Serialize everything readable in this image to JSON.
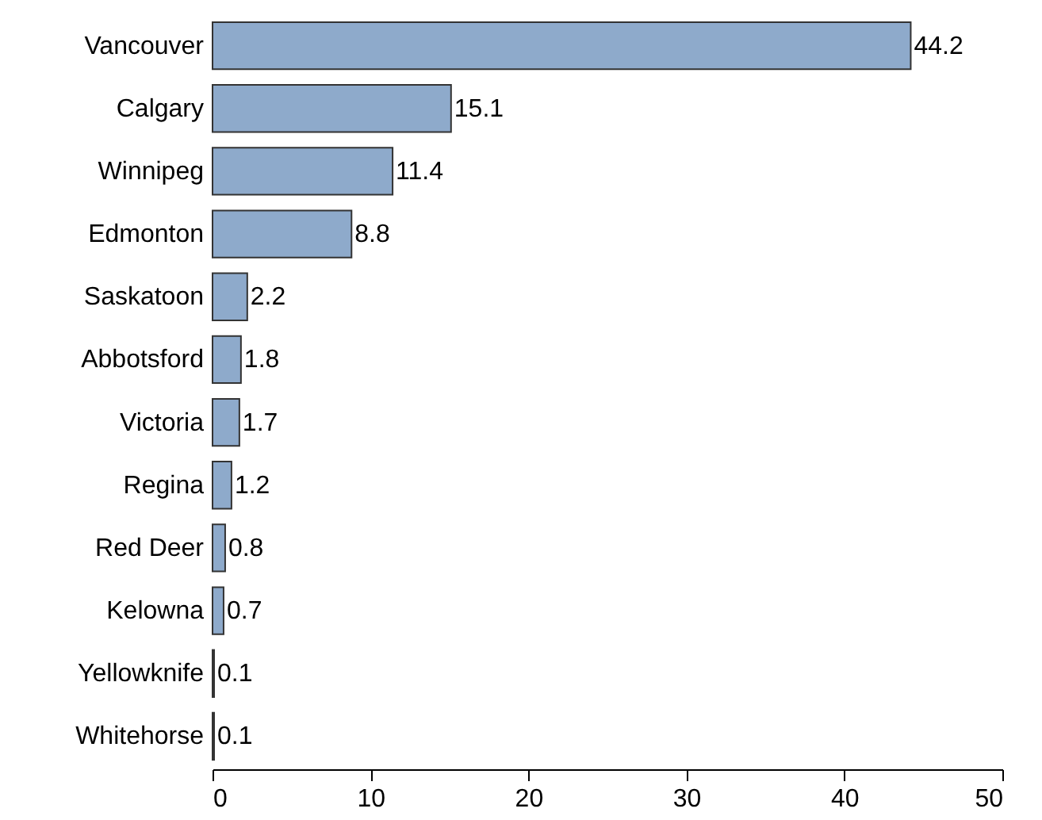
{
  "chart_data": {
    "type": "bar",
    "orientation": "horizontal",
    "categories": [
      "Vancouver",
      "Calgary",
      "Winnipeg",
      "Edmonton",
      "Saskatoon",
      "Abbotsford",
      "Victoria",
      "Regina",
      "Red Deer",
      "Kelowna",
      "Yellowknife",
      "Whitehorse"
    ],
    "values": [
      44.2,
      15.1,
      11.4,
      8.8,
      2.2,
      1.8,
      1.7,
      1.2,
      0.8,
      0.7,
      0.1,
      0.1
    ],
    "color": "#8eaacb",
    "xlim": [
      0,
      50
    ],
    "xticks": [
      0,
      10,
      20,
      30,
      40,
      50
    ],
    "data_labels": true,
    "grid": false
  }
}
